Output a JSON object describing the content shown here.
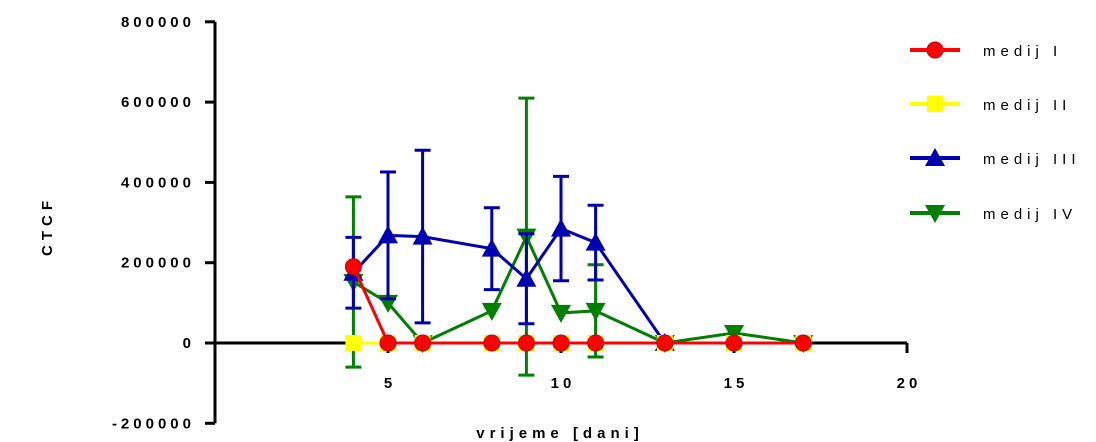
{
  "chart_data": {
    "type": "line",
    "xlabel": "vrijeme [dani]",
    "ylabel": "CTCF",
    "xlim": [
      0,
      20
    ],
    "ylim": [
      -200000,
      800000
    ],
    "x_ticks": [
      5,
      10,
      15,
      20
    ],
    "x_tick_labels": [
      "5",
      "10",
      "15",
      "20"
    ],
    "y_ticks": [
      -200000,
      0,
      200000,
      400000,
      600000,
      800000
    ],
    "y_tick_labels": [
      "-200000",
      "0",
      "200000",
      "400000",
      "600000",
      "800000"
    ],
    "grid": false,
    "legend_position": "right",
    "series": [
      {
        "name": "medij I",
        "color": "#ff0000",
        "marker": "circle",
        "x": [
          4,
          5,
          6,
          8,
          9,
          10,
          11,
          13,
          15,
          17
        ],
        "y": [
          190000,
          0,
          0,
          0,
          0,
          0,
          0,
          0,
          0,
          0
        ],
        "err": [
          0,
          0,
          0,
          0,
          0,
          0,
          0,
          0,
          0,
          0
        ]
      },
      {
        "name": "medij II",
        "color": "#ffff00",
        "marker": "square",
        "x": [
          4,
          5,
          6,
          8,
          9,
          10,
          11,
          13,
          15,
          17
        ],
        "y": [
          0,
          0,
          0,
          0,
          0,
          0,
          0,
          0,
          0,
          0
        ],
        "err": [
          0,
          0,
          0,
          0,
          0,
          0,
          0,
          0,
          0,
          0
        ]
      },
      {
        "name": "medij III",
        "color": "#0000b3",
        "marker": "triangle-up",
        "x": [
          4,
          5,
          6,
          8,
          9,
          10,
          11,
          13
        ],
        "y": [
          175000,
          268000,
          265000,
          235000,
          160000,
          285000,
          250000,
          0
        ],
        "err": [
          88000,
          158000,
          215000,
          102000,
          112000,
          130000,
          93000,
          0
        ]
      },
      {
        "name": "medij IV",
        "color": "#008000",
        "marker": "triangle-down",
        "x": [
          4,
          5,
          6,
          8,
          9,
          10,
          11,
          13,
          15,
          17
        ],
        "y": [
          152000,
          100000,
          0,
          80000,
          265000,
          75000,
          80000,
          0,
          25000,
          0
        ],
        "err": [
          212000,
          0,
          0,
          0,
          345000,
          0,
          115000,
          0,
          0,
          0
        ]
      }
    ]
  }
}
